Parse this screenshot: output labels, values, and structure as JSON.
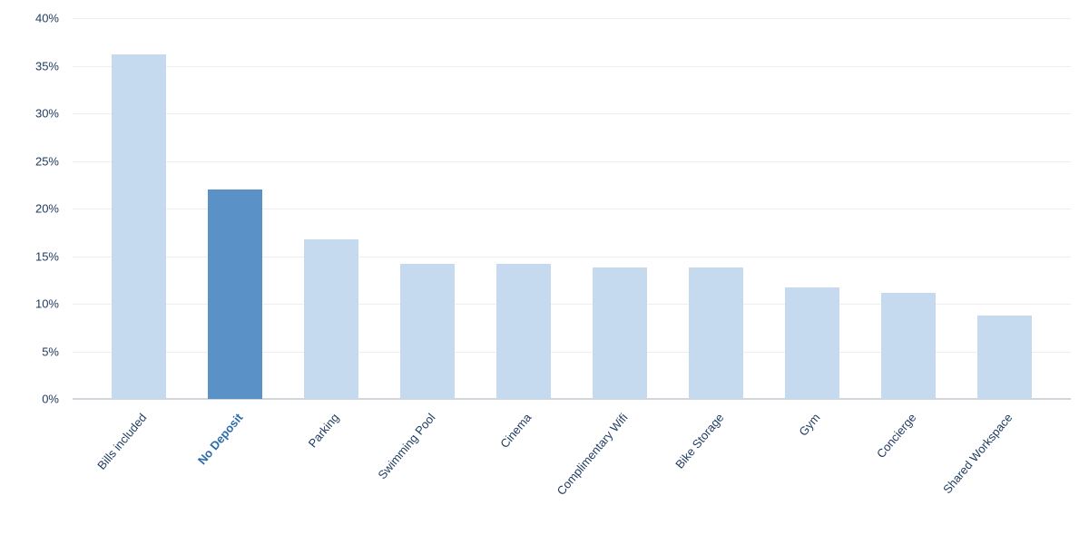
{
  "chart": {
    "type": "bar",
    "categories": [
      "Bills included",
      "No Deposit",
      "Parking",
      "Swimming Pool",
      "Cinema",
      "Complimentary Wifi",
      "Bike Storage",
      "Gym",
      "Concierge",
      "Shared Workspace"
    ],
    "values": [
      36.2,
      22.0,
      16.8,
      14.2,
      14.2,
      13.8,
      13.8,
      11.7,
      11.1,
      8.8
    ],
    "highlight_index": 1,
    "bar_color": "#c5daef",
    "highlight_color": "#5a92c8",
    "label_color": "#1e3a5f",
    "highlight_label_color": "#2b6aa8",
    "grid_color": "#eceff2",
    "axis_line_color": "#d0d5db",
    "ylim": [
      0,
      40
    ],
    "ytick_step": 5,
    "ytick_suffix": "%",
    "label_fontsize": 13,
    "background_color": "#ffffff",
    "bar_width": 0.56
  }
}
